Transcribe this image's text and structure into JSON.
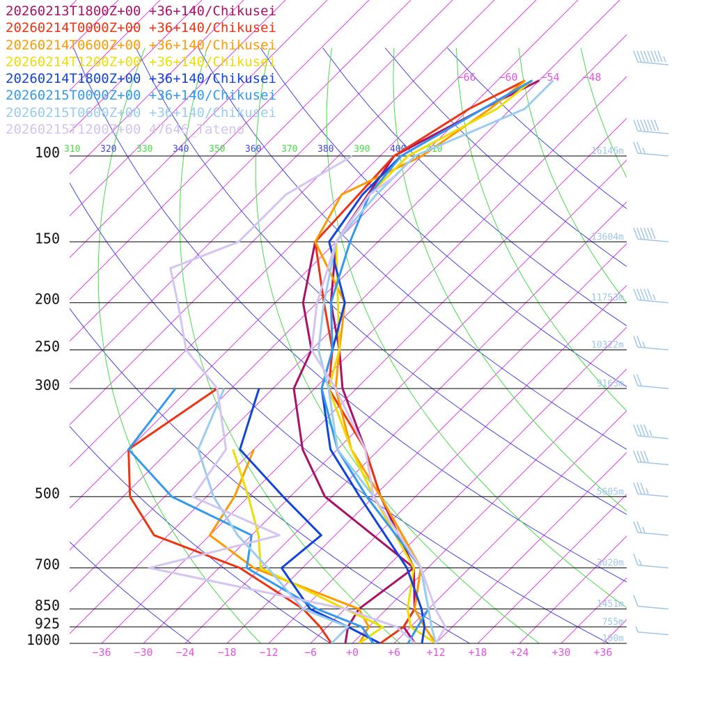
{
  "legend": [
    {
      "label": "20260213T1800Z+00 +36+140/Chikusei",
      "color": "#aa1166"
    },
    {
      "label": "20260214T0000Z+00 +36+140/Chikusei",
      "color": "#ee3311"
    },
    {
      "label": "20260214T0600Z+00 +36+140/Chikusei",
      "color": "#ff9900"
    },
    {
      "label": "20260214T1200Z+00 +36+140/Chikusei",
      "color": "#eedd00"
    },
    {
      "label": "20260214T1800Z+00 +36+140/Chikusei",
      "color": "#1144dd"
    },
    {
      "label": "20260215T0000Z+00 +36+140/Chikusei",
      "color": "#3399ee"
    },
    {
      "label": "20260215T0600Z+00 +36+140/Chikusei",
      "color": "#99ccf0"
    },
    {
      "label": "20260215T1200Z+00 47646_Tateno",
      "color": "#d4c4f2"
    }
  ],
  "colors": {
    "isotherm": "#dd44dd",
    "dry_adiabat": "#4444dd",
    "moist_adiabat": "#44dd44",
    "isobar": "#000000",
    "height_label": "#9fc5e8",
    "wind_barb": "#9fc5e8"
  },
  "chart_data": {
    "type": "line",
    "title": "",
    "xlabel": "",
    "ylabel": "",
    "y_scale": "log-pressure",
    "ylim": [
      1000,
      100
    ],
    "pressure_levels": [
      "100",
      "150",
      "200",
      "250",
      "300",
      "500",
      "700",
      "850",
      "925",
      "1000"
    ],
    "x_ticks": [
      "−36",
      "−30",
      "−24",
      "−18",
      "−12",
      "−6",
      "+0",
      "+6",
      "+12",
      "+18",
      "+24",
      "+30",
      "+36"
    ],
    "top_isotherm_labels": [
      "−66",
      "−60",
      "−54",
      "−48"
    ],
    "theta_labels": [
      {
        "text": "310",
        "color": "#44dd44"
      },
      {
        "text": "320",
        "color": "#4444dd"
      },
      {
        "text": "330",
        "color": "#44dd44"
      },
      {
        "text": "340",
        "color": "#4444dd"
      },
      {
        "text": "350",
        "color": "#44dd44"
      },
      {
        "text": "360",
        "color": "#4444dd"
      },
      {
        "text": "370",
        "color": "#44dd44"
      },
      {
        "text": "380",
        "color": "#4444dd"
      },
      {
        "text": "390",
        "color": "#44dd44"
      },
      {
        "text": "400",
        "color": "#4444dd"
      },
      {
        "text": "410",
        "color": "#44dd44"
      }
    ],
    "height_labels": [
      {
        "p": 100,
        "text": "16146m"
      },
      {
        "p": 150,
        "text": "13604m"
      },
      {
        "p": 200,
        "text": "11753m"
      },
      {
        "p": 250,
        "text": "10322m"
      },
      {
        "p": 300,
        "text": "9163m"
      },
      {
        "p": 500,
        "text": "5605m"
      },
      {
        "p": 700,
        "text": "3020m"
      },
      {
        "p": 850,
        "text": "1451m"
      },
      {
        "p": 925,
        "text": "755m"
      },
      {
        "p": 1000,
        "text": "100m"
      }
    ],
    "wind_barbs": [
      {
        "p": 65,
        "speed_kt": 85
      },
      {
        "p": 90,
        "speed_kt": 70
      },
      {
        "p": 100,
        "speed_kt": 25
      },
      {
        "p": 150,
        "speed_kt": 60
      },
      {
        "p": 200,
        "speed_kt": 55
      },
      {
        "p": 250,
        "speed_kt": 25
      },
      {
        "p": 300,
        "speed_kt": 20
      },
      {
        "p": 380,
        "speed_kt": 45
      },
      {
        "p": 430,
        "speed_kt": 40
      },
      {
        "p": 500,
        "speed_kt": 35
      },
      {
        "p": 600,
        "speed_kt": 25
      },
      {
        "p": 700,
        "speed_kt": 15
      },
      {
        "p": 850,
        "speed_kt": 10
      },
      {
        "p": 960,
        "speed_kt": 5
      }
    ],
    "series": [
      {
        "name": "20260213T1800Z+00 +36+140/Chikusei",
        "color": "#aa1166",
        "temp": [
          [
            1000,
            9
          ],
          [
            925,
            5
          ],
          [
            850,
            4
          ],
          [
            700,
            -2
          ],
          [
            500,
            -17
          ],
          [
            400,
            -26
          ],
          [
            300,
            -38
          ],
          [
            250,
            -44
          ],
          [
            200,
            -52
          ],
          [
            150,
            -60
          ],
          [
            100,
            -64
          ],
          [
            80,
            -58
          ],
          [
            70,
            -54
          ]
        ],
        "dew": [
          [
            1000,
            -1
          ],
          [
            925,
            -3
          ],
          [
            850,
            -4
          ],
          [
            700,
            -2
          ],
          [
            500,
            -25
          ],
          [
            400,
            -35
          ],
          [
            300,
            -45
          ],
          [
            250,
            -48
          ],
          [
            200,
            -56
          ],
          [
            150,
            -63
          ]
        ]
      },
      {
        "name": "20260214T0000Z+00 +36+140/Chikusei",
        "color": "#ee3311",
        "temp": [
          [
            1000,
            4
          ],
          [
            925,
            5
          ],
          [
            850,
            4
          ],
          [
            700,
            -1
          ],
          [
            500,
            -17
          ],
          [
            400,
            -26
          ],
          [
            300,
            -40
          ],
          [
            250,
            -45
          ],
          [
            200,
            -53
          ],
          [
            150,
            -63
          ],
          [
            100,
            -64
          ],
          [
            80,
            -60
          ],
          [
            70,
            -56
          ]
        ],
        "dew": [
          [
            1000,
            -3
          ],
          [
            925,
            -7
          ],
          [
            850,
            -12
          ],
          [
            700,
            -27
          ],
          [
            600,
            -44
          ],
          [
            500,
            -53
          ],
          [
            400,
            -60
          ],
          [
            300,
            -56
          ]
        ]
      },
      {
        "name": "20260214T0600Z+00 +36+140/Chikusei",
        "color": "#ff9900",
        "temp": [
          [
            1000,
            12
          ],
          [
            925,
            8
          ],
          [
            850,
            4
          ],
          [
            700,
            -1
          ],
          [
            500,
            -17
          ],
          [
            400,
            -28
          ],
          [
            300,
            -39
          ],
          [
            250,
            -44
          ],
          [
            200,
            -50
          ],
          [
            150,
            -63
          ],
          [
            120,
            -66
          ],
          [
            100,
            -60
          ],
          [
            80,
            -57
          ],
          [
            70,
            -56
          ]
        ],
        "dew": [
          [
            1000,
            1
          ],
          [
            925,
            0
          ],
          [
            850,
            -4
          ],
          [
            700,
            -25
          ],
          [
            600,
            -36
          ],
          [
            500,
            -38
          ],
          [
            400,
            -42
          ]
        ]
      },
      {
        "name": "20260214T1200Z+00 +36+140/Chikusei",
        "color": "#eedd00",
        "temp": [
          [
            1000,
            12
          ],
          [
            925,
            6
          ],
          [
            850,
            3
          ],
          [
            700,
            -2
          ],
          [
            500,
            -18
          ],
          [
            400,
            -28
          ],
          [
            300,
            -40
          ],
          [
            250,
            -44
          ],
          [
            200,
            -51
          ],
          [
            150,
            -60
          ],
          [
            120,
            -62
          ],
          [
            100,
            -62
          ],
          [
            80,
            -56
          ],
          [
            70,
            -55
          ]
        ],
        "dew": [
          [
            1000,
            1
          ],
          [
            925,
            2
          ],
          [
            850,
            -6
          ],
          [
            700,
            -24
          ],
          [
            600,
            -29
          ],
          [
            500,
            -36
          ],
          [
            400,
            -45
          ]
        ]
      },
      {
        "name": "20260214T1800Z+00 +36+140/Chikusei",
        "color": "#1144dd",
        "temp": [
          [
            1000,
            10
          ],
          [
            925,
            8
          ],
          [
            850,
            5
          ],
          [
            700,
            -3
          ],
          [
            500,
            -20
          ],
          [
            400,
            -31
          ],
          [
            300,
            -41
          ],
          [
            250,
            -45
          ],
          [
            200,
            -50
          ],
          [
            150,
            -61
          ],
          [
            120,
            -63
          ],
          [
            100,
            -63
          ],
          [
            80,
            -58
          ],
          [
            70,
            -55
          ]
        ],
        "dew": [
          [
            1000,
            4
          ],
          [
            925,
            -3
          ],
          [
            850,
            -11
          ],
          [
            700,
            -21
          ],
          [
            600,
            -20
          ],
          [
            500,
            -31
          ],
          [
            400,
            -44
          ],
          [
            300,
            -50
          ]
        ]
      },
      {
        "name": "20260215T0000Z+00 +36+140/Chikusei",
        "color": "#3399ee",
        "temp": [
          [
            1000,
            8
          ],
          [
            925,
            7
          ],
          [
            850,
            6
          ],
          [
            700,
            -1
          ],
          [
            500,
            -19
          ],
          [
            400,
            -30
          ],
          [
            300,
            -41
          ],
          [
            250,
            -45
          ],
          [
            200,
            -52
          ],
          [
            150,
            -58
          ],
          [
            120,
            -62
          ],
          [
            100,
            -63
          ],
          [
            80,
            -58
          ],
          [
            70,
            -55
          ]
        ],
        "dew": [
          [
            1000,
            3
          ],
          [
            925,
            -1
          ],
          [
            850,
            -10
          ],
          [
            700,
            -26
          ],
          [
            600,
            -30
          ],
          [
            500,
            -47
          ],
          [
            400,
            -60
          ],
          [
            300,
            -62
          ]
        ]
      },
      {
        "name": "20260215T0600Z+00 +36+140/Chikusei",
        "color": "#99ccf0",
        "temp": [
          [
            1000,
            12
          ],
          [
            925,
            9
          ],
          [
            850,
            6
          ],
          [
            700,
            -1
          ],
          [
            500,
            -18
          ],
          [
            400,
            -30
          ],
          [
            300,
            -40
          ],
          [
            250,
            -47
          ],
          [
            200,
            -53
          ],
          [
            150,
            -60
          ],
          [
            120,
            -61
          ],
          [
            100,
            -61
          ],
          [
            80,
            -52
          ],
          [
            70,
            -52
          ]
        ],
        "dew": [
          [
            1000,
            -3
          ],
          [
            925,
            -3
          ],
          [
            850,
            -12
          ],
          [
            700,
            -23
          ],
          [
            600,
            -32
          ],
          [
            500,
            -41
          ],
          [
            400,
            -50
          ],
          [
            300,
            -55
          ]
        ]
      },
      {
        "name": "20260215T1200Z+00 47646_Tateno",
        "color": "#d4c4f2",
        "temp": [
          [
            1000,
            12
          ],
          [
            925,
            11
          ],
          [
            850,
            7
          ],
          [
            700,
            -1
          ],
          [
            500,
            -18
          ],
          [
            400,
            -26
          ],
          [
            300,
            -39
          ],
          [
            250,
            -48
          ],
          [
            200,
            -54
          ],
          [
            150,
            -60
          ],
          [
            120,
            -62
          ],
          [
            110,
            -61
          ]
        ],
        "dew": [
          [
            1000,
            9
          ],
          [
            925,
            4
          ],
          [
            850,
            -6
          ],
          [
            700,
            -40
          ],
          [
            600,
            -26
          ],
          [
            500,
            -44
          ],
          [
            400,
            -46
          ],
          [
            300,
            -56
          ],
          [
            250,
            -66
          ],
          [
            200,
            -74
          ],
          [
            170,
            -80
          ],
          [
            150,
            -74
          ],
          [
            120,
            -74
          ],
          [
            100,
            -70
          ]
        ]
      }
    ]
  }
}
